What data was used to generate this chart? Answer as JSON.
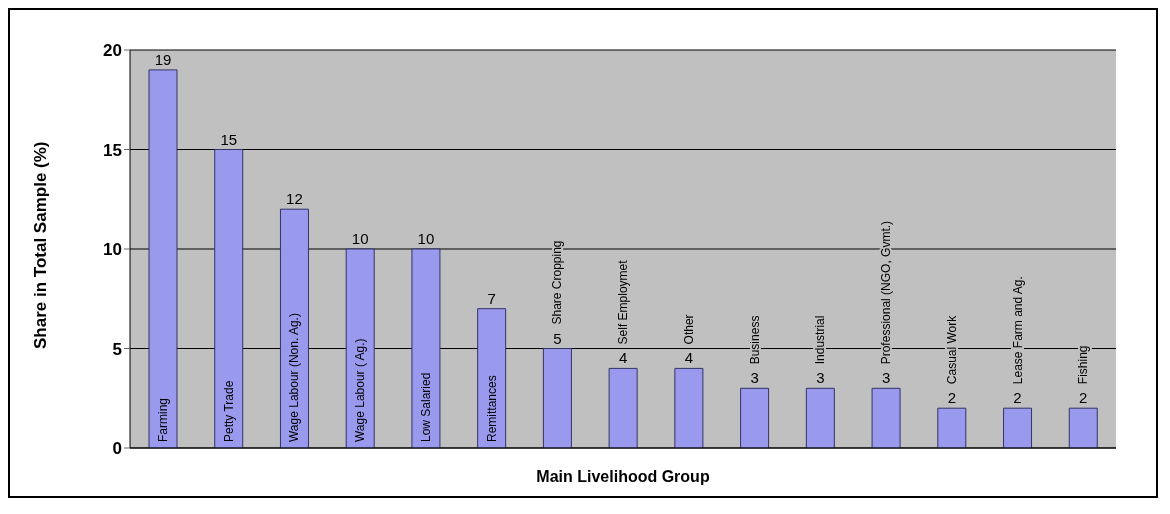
{
  "chart_data": {
    "type": "bar",
    "xlabel": "Main Livelihood Group",
    "ylabel": "Share in Total Sample (%)",
    "categories": [
      "Farming",
      "Petty Trade",
      "Wage Labour (Non. Ag.)",
      "Wage Labour ( Ag.)",
      "Low Salaried",
      "Remittances",
      "Share Cropping",
      "Self Employmet",
      "Other",
      "Business",
      "Industrial",
      "Professional (NGO, Gvmt.)",
      "Casual Work",
      "Lease Farm and Ag.",
      "Fishing"
    ],
    "values": [
      19,
      15,
      12,
      10,
      10,
      7,
      5,
      4,
      4,
      3,
      3,
      3,
      2,
      2,
      2
    ],
    "color": "#9999ee",
    "ylim": [
      0,
      20
    ],
    "yticks": [
      0,
      5,
      10,
      15,
      20
    ],
    "grid": "y",
    "data_labels": true,
    "legend": false
  }
}
